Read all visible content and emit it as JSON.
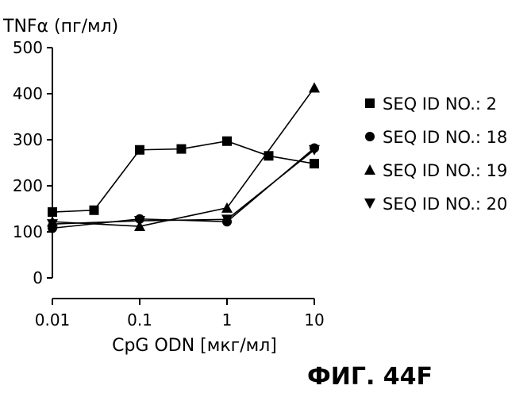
{
  "chart_data": {
    "type": "line",
    "ylabel": "TNFα (пг/мл)",
    "xlabel": "CpG ODN [мкг/мл]",
    "caption": "ФИГ. 44F",
    "x_scale": "log",
    "xlim": [
      0.01,
      10
    ],
    "ylim": [
      0,
      500
    ],
    "x_ticks": [
      "0.01",
      "0.1",
      "1",
      "10"
    ],
    "y_ticks": [
      "0",
      "100",
      "200",
      "300",
      "400",
      "500"
    ],
    "x": [
      0.01,
      0.03,
      0.1,
      0.3,
      1,
      3,
      10
    ],
    "grid": false,
    "legend_position": "right",
    "series": [
      {
        "name": "SEQ ID NO.: 2",
        "marker": "square",
        "x": [
          0.01,
          0.03,
          0.1,
          0.3,
          1,
          3,
          10
        ],
        "values": [
          143,
          147,
          278,
          280,
          297,
          265,
          248
        ]
      },
      {
        "name": "SEQ ID NO.: 18",
        "marker": "circle",
        "x": [
          0.01,
          0.1,
          1,
          10
        ],
        "values": [
          108,
          128,
          122,
          282
        ]
      },
      {
        "name": "SEQ ID NO.: 19",
        "marker": "triangle-up",
        "x": [
          0.01,
          0.1,
          1,
          10
        ],
        "values": [
          122,
          112,
          152,
          413
        ]
      },
      {
        "name": "SEQ ID NO.: 20",
        "marker": "triangle-down",
        "x": [
          0.01,
          0.1,
          1,
          10
        ],
        "values": [
          117,
          124,
          127,
          278
        ]
      }
    ]
  }
}
